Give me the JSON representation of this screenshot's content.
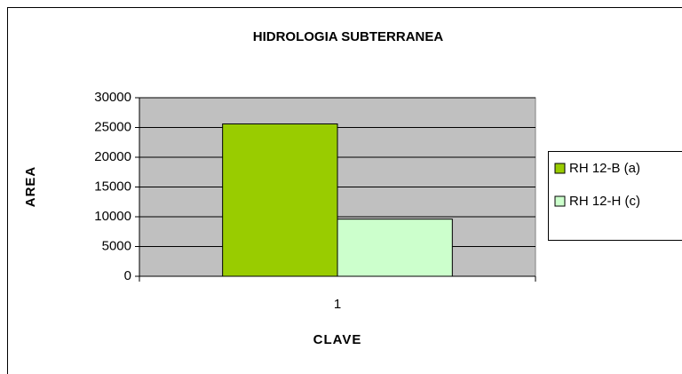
{
  "chart_data": {
    "type": "bar",
    "title": "HIDROLOGIA SUBTERRANEA",
    "x_label": "CLAVE",
    "y_label": "AREA",
    "categories": [
      "1"
    ],
    "series": [
      {
        "name": "RH 12-B (a)",
        "color": "#99cc00",
        "values": [
          25600
        ]
      },
      {
        "name": "RH 12-H (c)",
        "color": "#ccffcc",
        "values": [
          9600
        ]
      }
    ],
    "ylim": [
      0,
      30000
    ],
    "yticks": [
      0,
      5000,
      10000,
      15000,
      20000,
      25000,
      30000
    ],
    "grid": true,
    "legend": "right",
    "plot_background": "#c0c0c0"
  }
}
